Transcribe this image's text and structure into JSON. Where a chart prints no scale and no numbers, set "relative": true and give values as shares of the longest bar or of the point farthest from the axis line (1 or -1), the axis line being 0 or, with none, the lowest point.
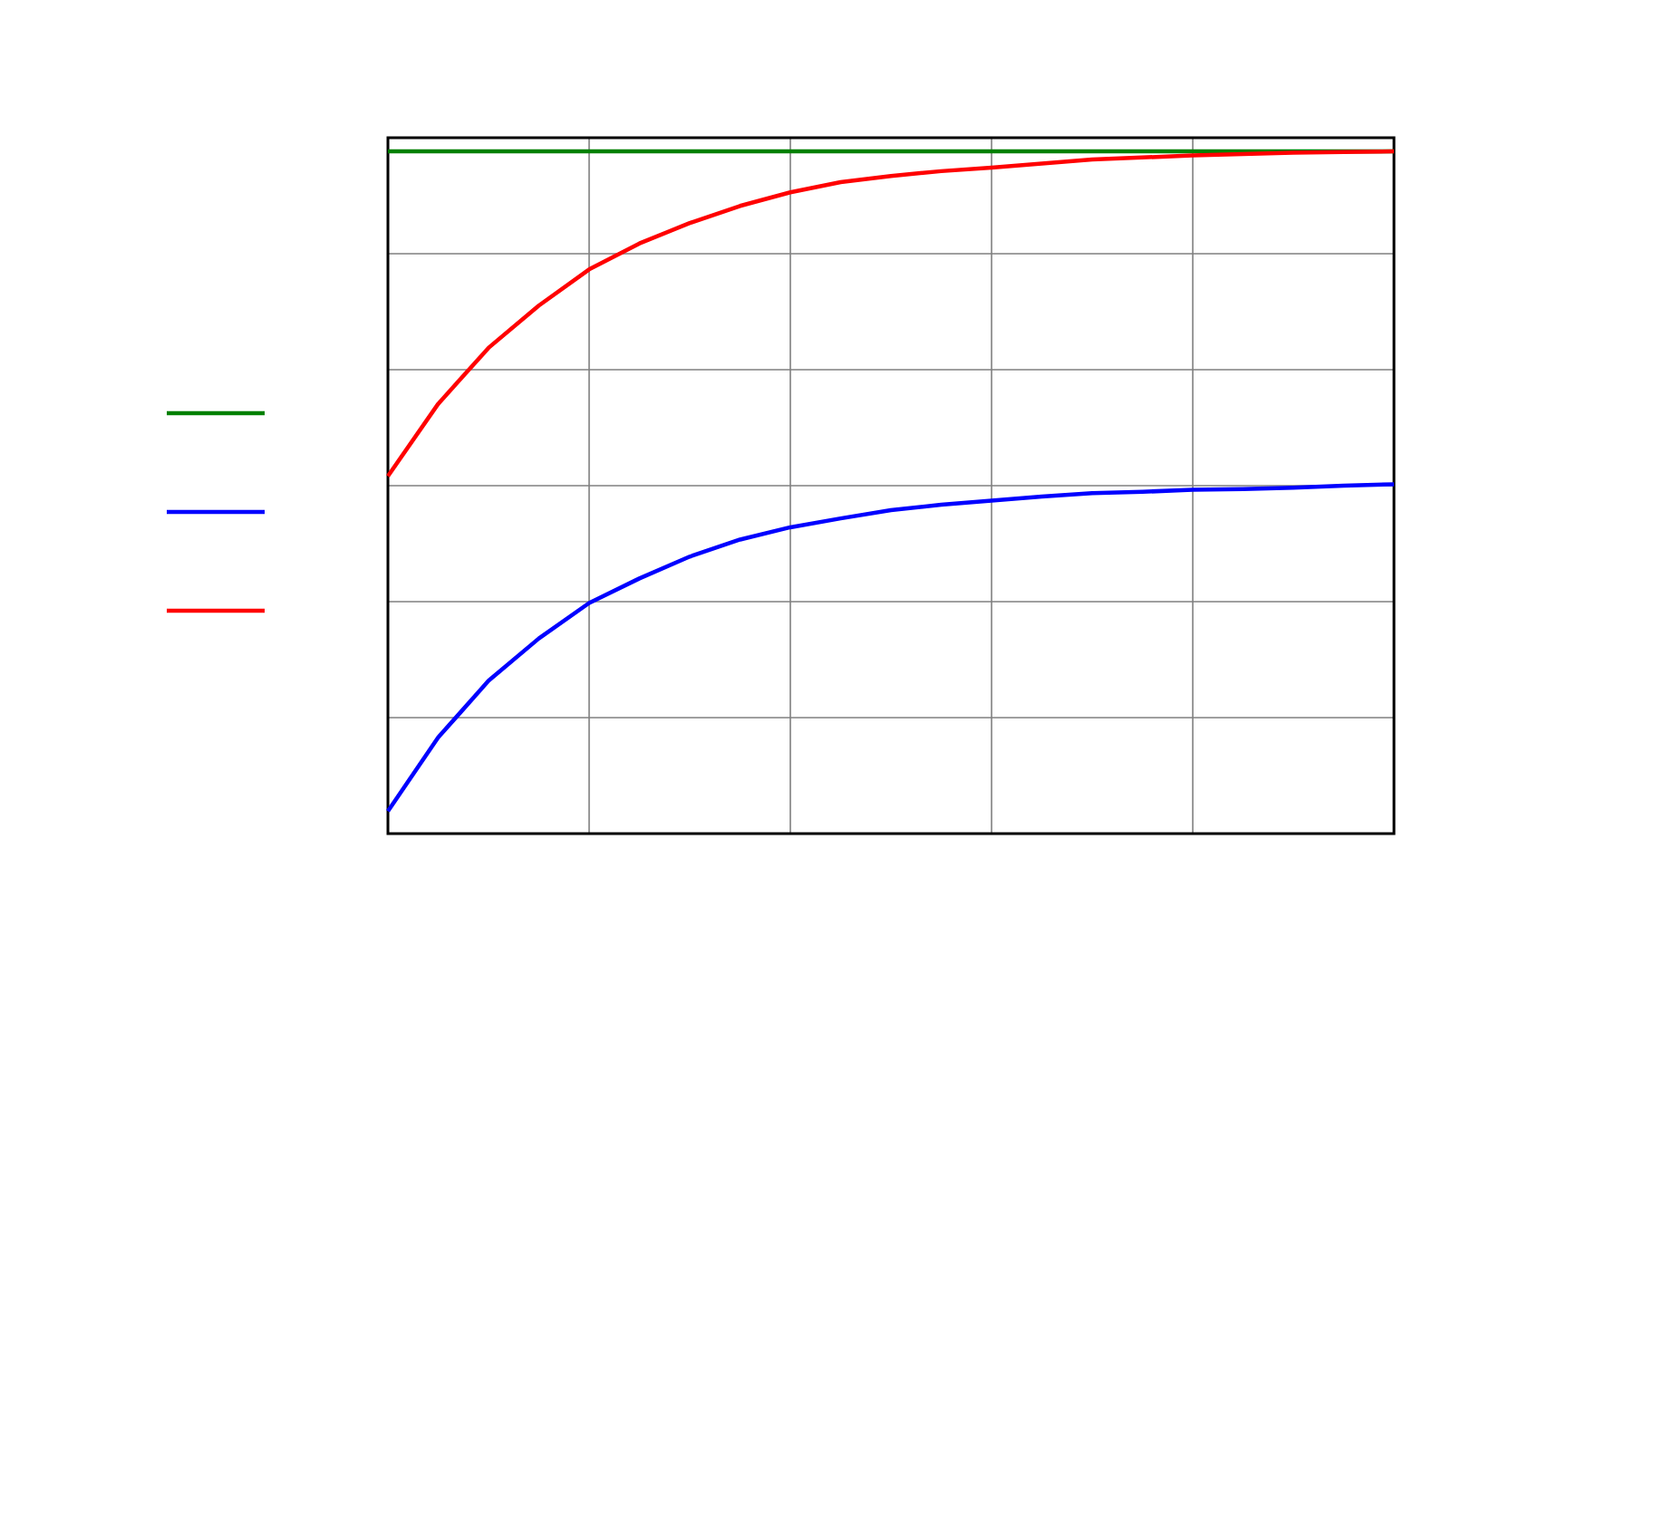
{
  "chart_data": {
    "type": "line",
    "relative": true,
    "grid": true,
    "line_style": "solid",
    "categories": [
      null,
      null,
      null,
      null,
      null,
      null,
      null,
      null,
      null,
      null,
      null,
      null,
      null,
      null,
      null,
      null,
      null,
      null,
      null,
      null,
      null
    ],
    "series": [
      {
        "color": "#008000",
        "values": [
          1,
          1,
          1,
          1,
          1,
          1,
          1,
          1,
          1,
          1,
          1,
          1,
          1,
          1,
          1,
          1,
          1,
          1,
          1,
          1,
          1
        ]
      },
      {
        "color": "#0000ff",
        "values": [
          0.033,
          0.141,
          0.224,
          0.286,
          0.338,
          0.374,
          0.406,
          0.431,
          0.449,
          0.462,
          0.474,
          0.482,
          0.488,
          0.494,
          0.499,
          0.501,
          0.504,
          0.505,
          0.507,
          0.51,
          0.512
        ]
      },
      {
        "color": "#ff0000",
        "values": [
          0.524,
          0.63,
          0.712,
          0.774,
          0.827,
          0.865,
          0.895,
          0.92,
          0.94,
          0.955,
          0.964,
          0.971,
          0.976,
          0.982,
          0.988,
          0.991,
          0.994,
          0.996,
          0.998,
          0.999,
          1.0
        ]
      }
    ]
  }
}
